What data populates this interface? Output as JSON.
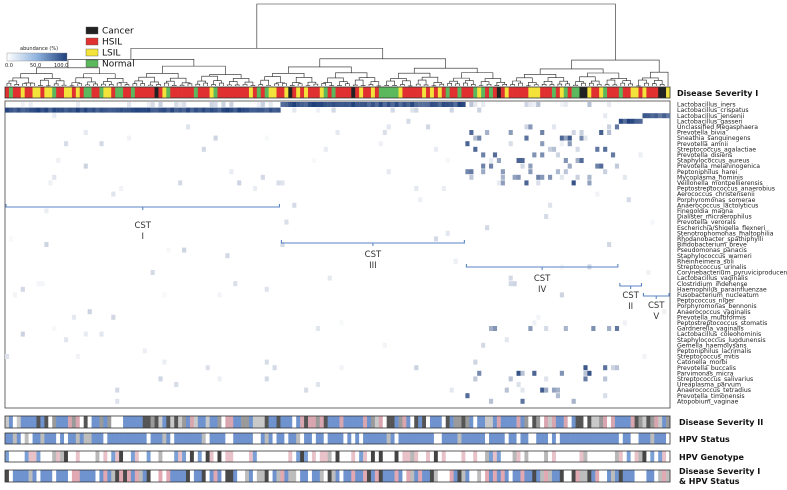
{
  "legend": {
    "items": [
      {
        "label": "Cancer",
        "color": "#222222"
      },
      {
        "label": "HSIL",
        "color": "#e03030"
      },
      {
        "label": "LSIL",
        "color": "#f2e23a"
      },
      {
        "label": "Normal",
        "color": "#5cb85c"
      }
    ],
    "abundance_title": "abundance (%)",
    "abundance_ticks": [
      "0.0",
      "50.0",
      "100.0"
    ]
  },
  "tracks": {
    "disease_severity_1": "Disease Severity I",
    "disease_severity_2": "Disease Severity II",
    "hpv_status": "HPV Status",
    "hpv_genotype": "HPV Genotype",
    "combined_line1": "Disease Severity I",
    "combined_line2": "& HPV Status"
  },
  "chart_data": {
    "type": "heatmap",
    "taxa": [
      "Lactobacillus_iners",
      "Lactobacillus_crispatus",
      "Lactobacillus_jensenii",
      "Lactobacillus_gasseri",
      "Unclassified Megasphaera",
      "Prevotella_bivia",
      "Sneathia_sanguinegens",
      "Prevotella_amnii",
      "Streptococcus_agalactiae",
      "Prevotella_disiens",
      "Staphylococcus_aureus",
      "Prevotella_melaninogenica",
      "Peptoniphilus_harei",
      "Mycoplasma_hominis",
      "Veillonella_montpellierensis",
      "Peptostreptococcus_anaerobius",
      "Aerococcus_christensenii",
      "Porphyromonas_somerae",
      "Anaerococcus_lactolyticus",
      "Finegoldia_magna",
      "Dialister_micraerophilus",
      "Prevotella_verorals",
      "Escherichia/Shigella_flexneri",
      "Stenotrophomonas_maltophilia",
      "Rhodanobacter_spathiphylli",
      "Bifidobacterium_breve",
      "Pseudomonas_panacis",
      "Staphylococcus_warneri",
      "Rheinheimera_soli",
      "Streptococcus_urinalis",
      "Corynebacterium_pyruviciproducens",
      "Lactobacillus_vaginalis",
      "Clostridium_ihdehense",
      "Haemophilus_parainfluenzae",
      "Fusobacterium_nucleatum",
      "Peptococcus_niger",
      "Porphyromonas_bennonis",
      "Anaerococcus_vaginalis",
      "Prevotella_multiformis",
      "Peptostreptococcus_stomatis",
      "Gardnerella_vaginalis",
      "Lactobacillus_coleohominis",
      "Staphylococcus_lugdunensis",
      "Gemella_haemolysans",
      "Peptoniphilus_lacrimalis",
      "Streptococcus_mitis",
      "Catonella_morbi",
      "Prevotella_buccalis",
      "Parvimonas_micra",
      "Streptococcus_salivarius",
      "Ureaplasma_parvum",
      "Anaerococcus_tetradius",
      "Prevotella_timonensis",
      "Atopobium_vaginae"
    ],
    "num_samples": 169,
    "cst_groups": [
      {
        "name": "CST",
        "roman": "I",
        "start": 0,
        "end": 70
      },
      {
        "name": "CST",
        "roman": "III",
        "start": 70,
        "end": 117
      },
      {
        "name": "CST",
        "roman": "IV",
        "start": 117,
        "end": 156
      },
      {
        "name": "CST",
        "roman": "II",
        "start": 156,
        "end": 162
      },
      {
        "name": "CST",
        "roman": "V",
        "start": 162,
        "end": 169
      }
    ],
    "value_range": [
      0,
      100
    ]
  }
}
